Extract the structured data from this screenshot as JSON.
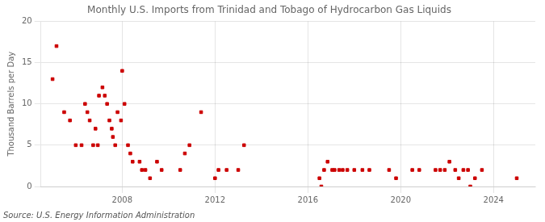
{
  "chart_data": {
    "type": "scatter",
    "title": "Monthly U.S. Imports from Trinidad and Tobago of Hydrocarbon Gas Liquids",
    "ylabel": "Thousand Barrels per Day",
    "source": "Source: U.S. Energy Information Administration",
    "color": "#cc0000",
    "marker": "square",
    "grid": true,
    "xlim": [
      2004.5,
      2025.8
    ],
    "xticks": [
      2008,
      2012,
      2016,
      2020,
      2024
    ],
    "ylim": [
      0,
      20
    ],
    "yticks": [
      0,
      5,
      10,
      15,
      20
    ],
    "x": [
      2005.0,
      2005.17,
      2005.5,
      2005.75,
      2006.0,
      2006.25,
      2006.4,
      2006.5,
      2006.6,
      2006.75,
      2006.85,
      2006.95,
      2007.0,
      2007.15,
      2007.25,
      2007.35,
      2007.45,
      2007.55,
      2007.6,
      2007.7,
      2007.8,
      2007.95,
      2008.0,
      2008.1,
      2008.25,
      2008.35,
      2008.45,
      2008.75,
      2008.85,
      2009.0,
      2009.2,
      2009.5,
      2009.7,
      2010.5,
      2010.7,
      2010.9,
      2011.4,
      2012.0,
      2012.15,
      2012.5,
      2013.0,
      2013.25,
      2016.5,
      2016.58,
      2016.7,
      2016.85,
      2017.05,
      2017.15,
      2017.35,
      2017.5,
      2017.7,
      2018.0,
      2018.35,
      2018.65,
      2019.5,
      2019.8,
      2020.5,
      2020.8,
      2021.5,
      2021.7,
      2021.9,
      2022.1,
      2022.35,
      2022.5,
      2022.7,
      2022.9,
      2023.0,
      2023.2,
      2023.5,
      2025.0
    ],
    "values": [
      13,
      17,
      9,
      8,
      5,
      5,
      10,
      9,
      8,
      5,
      7,
      5,
      11,
      12,
      11,
      10,
      8,
      7,
      6,
      5,
      9,
      8,
      14,
      10,
      5,
      4,
      3,
      3,
      2,
      2,
      1,
      3,
      2,
      2,
      4,
      5,
      9,
      1,
      2,
      2,
      2,
      5,
      1,
      0,
      2,
      3,
      2,
      2,
      2,
      2,
      2,
      2,
      2,
      2,
      2,
      1,
      2,
      2,
      2,
      2,
      2,
      3,
      2,
      1,
      2,
      2,
      0,
      1,
      2,
      1
    ]
  }
}
